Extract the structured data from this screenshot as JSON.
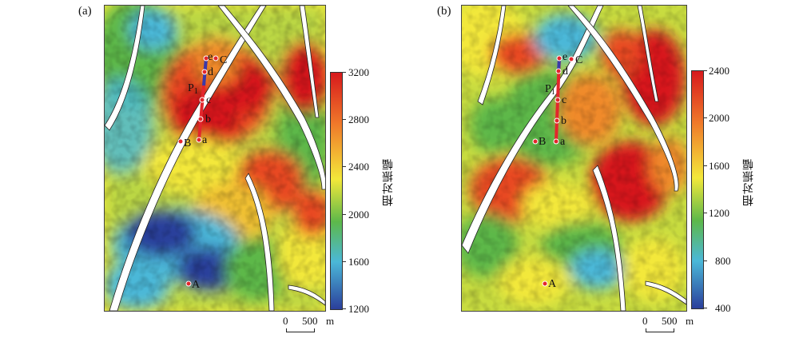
{
  "panels": [
    {
      "label": "(a)",
      "points": {
        "A": "A",
        "B": "B",
        "C": "C"
      },
      "well_label": "P",
      "well_subscript": "1",
      "well_points": [
        "a",
        "b",
        "c",
        "d",
        "e"
      ],
      "colorbar": {
        "title": "相对振幅",
        "ticks": [
          "3200",
          "2800",
          "2400",
          "2000",
          "1600",
          "1200"
        ],
        "min": 1200,
        "max": 3200
      },
      "scale_bar": {
        "start": "0",
        "end": "500",
        "unit": "m"
      }
    },
    {
      "label": "(b)",
      "points": {
        "A": "A",
        "B": "B",
        "C": "C"
      },
      "well_label": "P",
      "well_subscript": "1",
      "well_points": [
        "a",
        "b",
        "c",
        "d",
        "e"
      ],
      "colorbar": {
        "title": "相对振幅",
        "ticks": [
          "2400",
          "2000",
          "1600",
          "1200",
          "800",
          "400"
        ],
        "min": 400,
        "max": 2400
      },
      "scale_bar": {
        "start": "0",
        "end": "500",
        "unit": "m"
      }
    }
  ],
  "colors": {
    "high": "#d7191c",
    "orange": "#f08a2a",
    "yellow": "#f3e83a",
    "green": "#5db84a",
    "cyan": "#4bb8d8",
    "low": "#2b3f9b",
    "well_path": "#e3262c",
    "well_upper": "#3a3aa8",
    "fault": "#ffffff"
  },
  "icons": [
    "point-marker-icon",
    "well-path-icon",
    "fault-trace-icon"
  ]
}
